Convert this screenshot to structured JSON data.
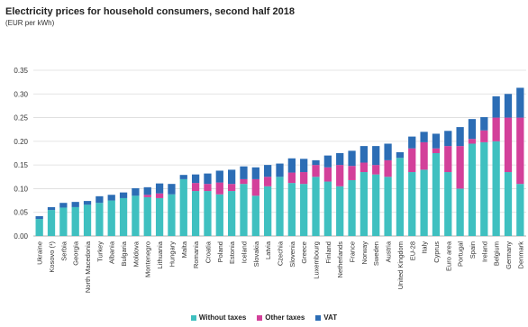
{
  "chart_data": {
    "type": "bar",
    "stacked": true,
    "title": "Electricity prices for household consumers, second half 2018",
    "subtitle": "(EUR per kWh)",
    "ylim": [
      0,
      0.35
    ],
    "yticks": [
      "0.00",
      "0.05",
      "0.10",
      "0.15",
      "0.20",
      "0.25",
      "0.30",
      "0.35"
    ],
    "grid": true,
    "legend_position": "bottom",
    "categories": [
      "Ukraine",
      "Kosovo (¹)",
      "Serbia",
      "Georgia",
      "North Macedonia",
      "Turkey",
      "Albania",
      "Bulgaria",
      "Moldova",
      "Montenegro",
      "Lithuania",
      "Hungary",
      "Malta",
      "Romania",
      "Croatia",
      "Poland",
      "Estonia",
      "Iceland",
      "Slovakia",
      "Latvia",
      "Czechia",
      "Slovenia",
      "Greece",
      "Luxembourg",
      "Finland",
      "Netherlands",
      "France",
      "Norway",
      "Sweden",
      "Austria",
      "United Kingdom",
      "EU-28",
      "Italy",
      "Cyprus",
      "Euro area",
      "Portugal",
      "Spain",
      "Ireland",
      "Belgium",
      "Germany",
      "Denmark"
    ],
    "series": [
      {
        "name": "Without taxes",
        "color": "#3fc0c0",
        "values": [
          0.036,
          0.055,
          0.06,
          0.061,
          0.066,
          0.07,
          0.075,
          0.08,
          0.085,
          0.082,
          0.08,
          0.088,
          0.12,
          0.095,
          0.095,
          0.088,
          0.095,
          0.11,
          0.085,
          0.105,
          0.125,
          0.112,
          0.11,
          0.125,
          0.115,
          0.105,
          0.118,
          0.135,
          0.13,
          0.125,
          0.165,
          0.135,
          0.14,
          0.175,
          0.135,
          0.1,
          0.195,
          0.198,
          0.2,
          0.135,
          0.11
        ]
      },
      {
        "name": "Other taxes",
        "color": "#d3409a",
        "values": [
          0.0,
          0.0,
          0.0,
          0.0,
          0.0,
          0.0,
          0.0,
          0.0,
          0.0,
          0.005,
          0.01,
          0.0,
          0.0,
          0.017,
          0.015,
          0.025,
          0.015,
          0.01,
          0.035,
          0.02,
          0.0,
          0.022,
          0.025,
          0.025,
          0.03,
          0.045,
          0.03,
          0.02,
          0.02,
          0.035,
          0.0,
          0.05,
          0.058,
          0.01,
          0.055,
          0.09,
          0.01,
          0.025,
          0.05,
          0.115,
          0.14
        ]
      },
      {
        "name": "VAT",
        "color": "#2c6db5",
        "values": [
          0.006,
          0.006,
          0.01,
          0.011,
          0.008,
          0.014,
          0.012,
          0.012,
          0.016,
          0.016,
          0.021,
          0.022,
          0.009,
          0.018,
          0.022,
          0.025,
          0.03,
          0.027,
          0.025,
          0.025,
          0.028,
          0.03,
          0.028,
          0.01,
          0.025,
          0.025,
          0.032,
          0.035,
          0.04,
          0.035,
          0.012,
          0.025,
          0.022,
          0.031,
          0.032,
          0.04,
          0.042,
          0.028,
          0.045,
          0.05,
          0.063
        ]
      }
    ]
  }
}
